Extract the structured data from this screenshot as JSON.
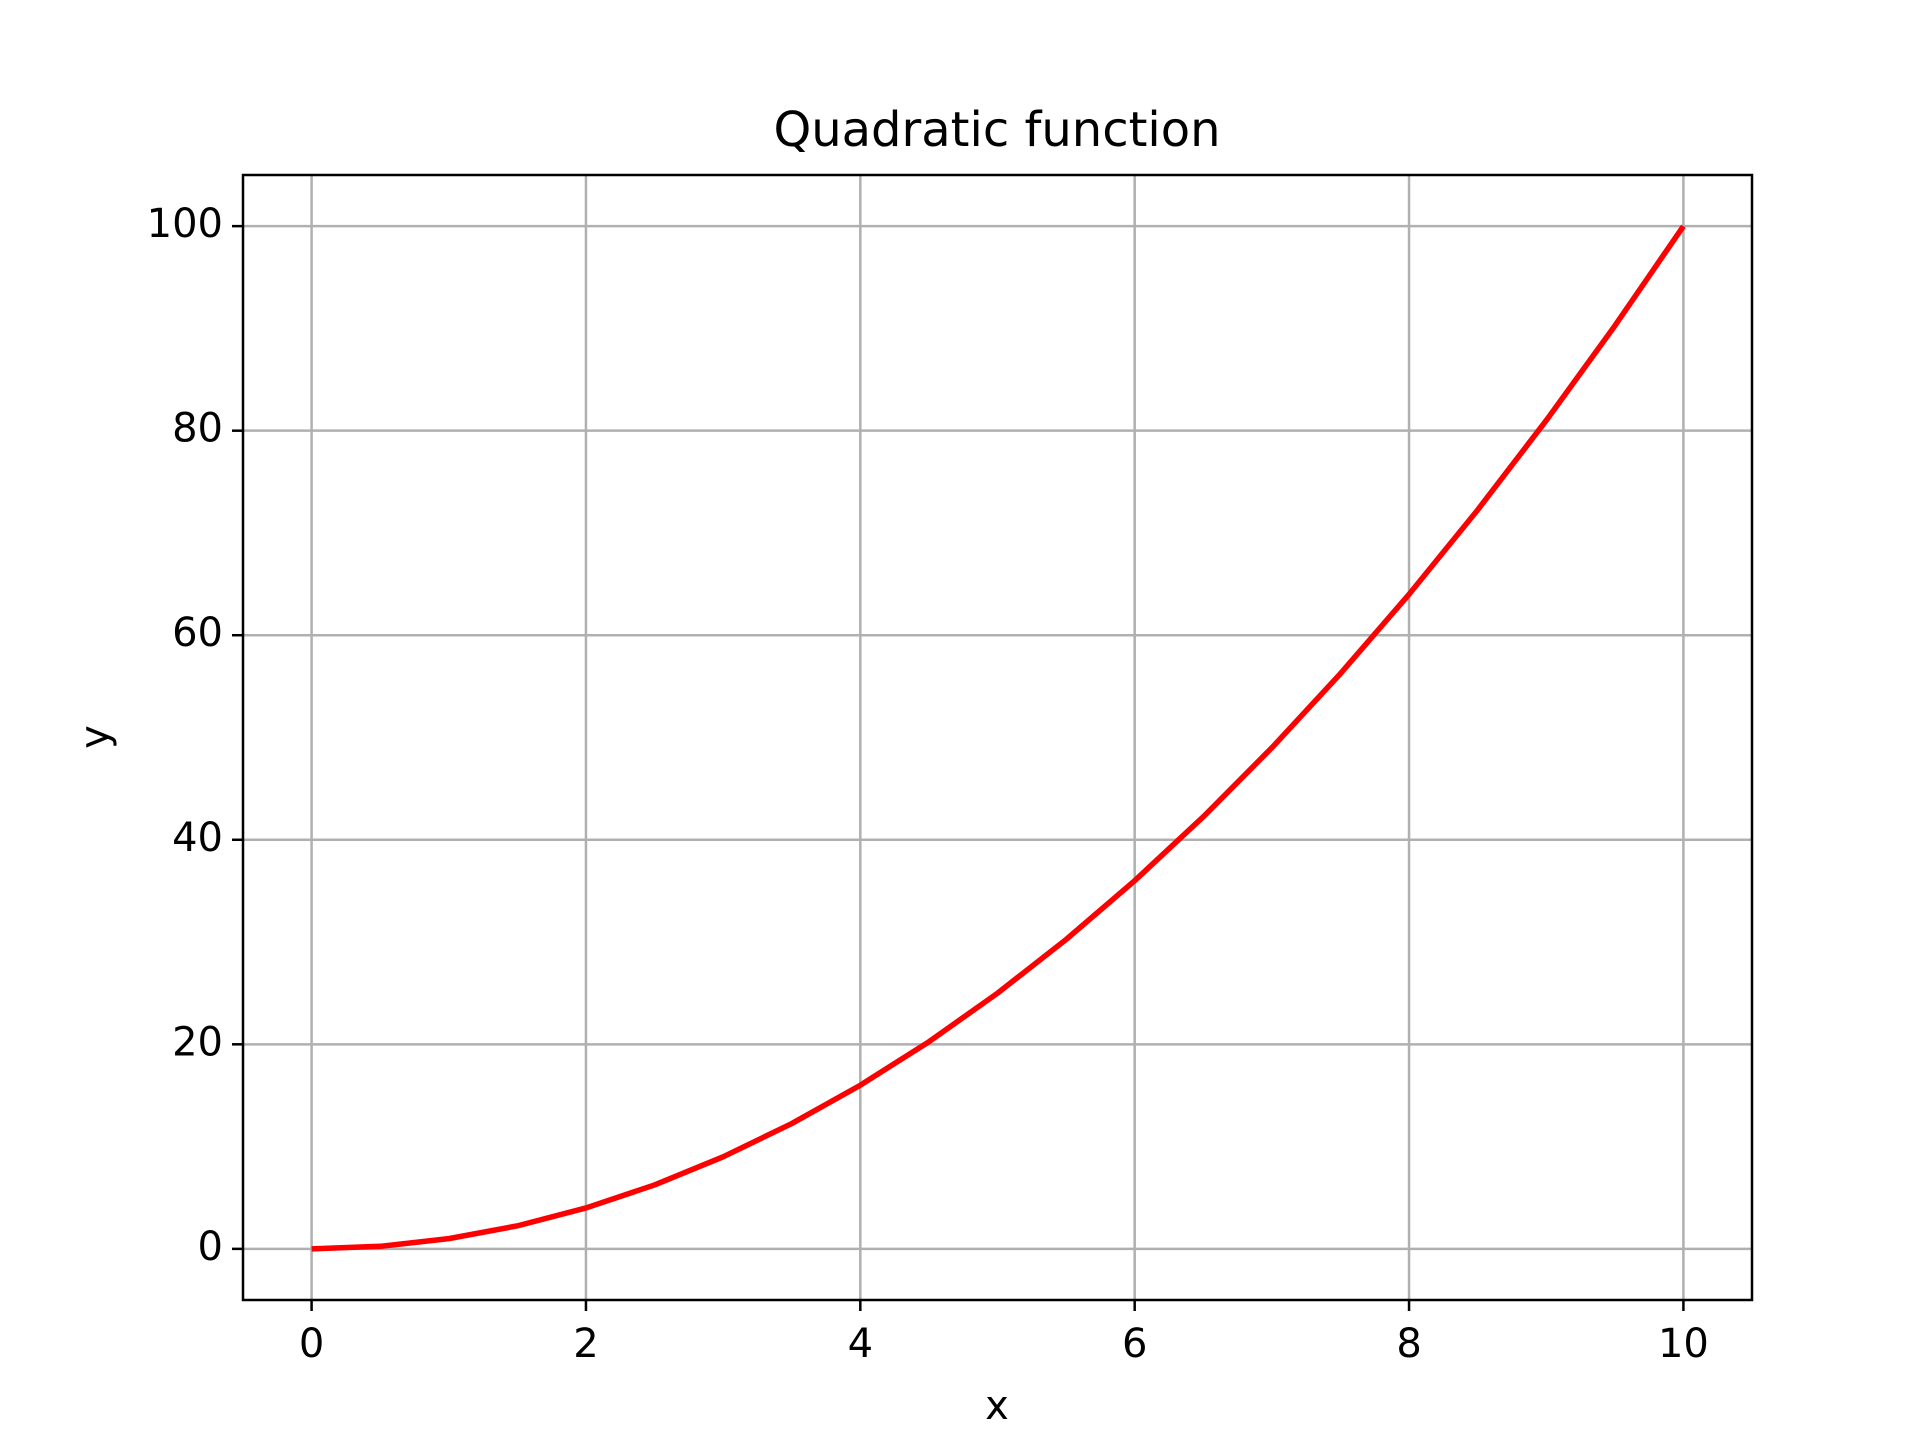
{
  "chart_data": {
    "type": "line",
    "title": "Quadratic function",
    "x_label": "x",
    "y_label": "y",
    "x": [
      0,
      0.5,
      1,
      1.5,
      2,
      2.5,
      3,
      3.5,
      4,
      4.5,
      5,
      5.5,
      6,
      6.5,
      7,
      7.5,
      8,
      8.5,
      9,
      9.5,
      10
    ],
    "series": [
      {
        "color": "#ff0000",
        "values": [
          0,
          0.25,
          1,
          2.25,
          4,
          6.25,
          9,
          12.25,
          16,
          20.25,
          25,
          30.25,
          36,
          42.25,
          49,
          56.25,
          64,
          72.25,
          81,
          90.25,
          100
        ]
      }
    ],
    "xlim": [
      -0.5,
      10.5
    ],
    "ylim": [
      -5,
      105
    ],
    "xticks": [
      0,
      2,
      4,
      6,
      8,
      10
    ],
    "yticks": [
      0,
      20,
      40,
      60,
      80,
      100
    ],
    "grid": true
  }
}
